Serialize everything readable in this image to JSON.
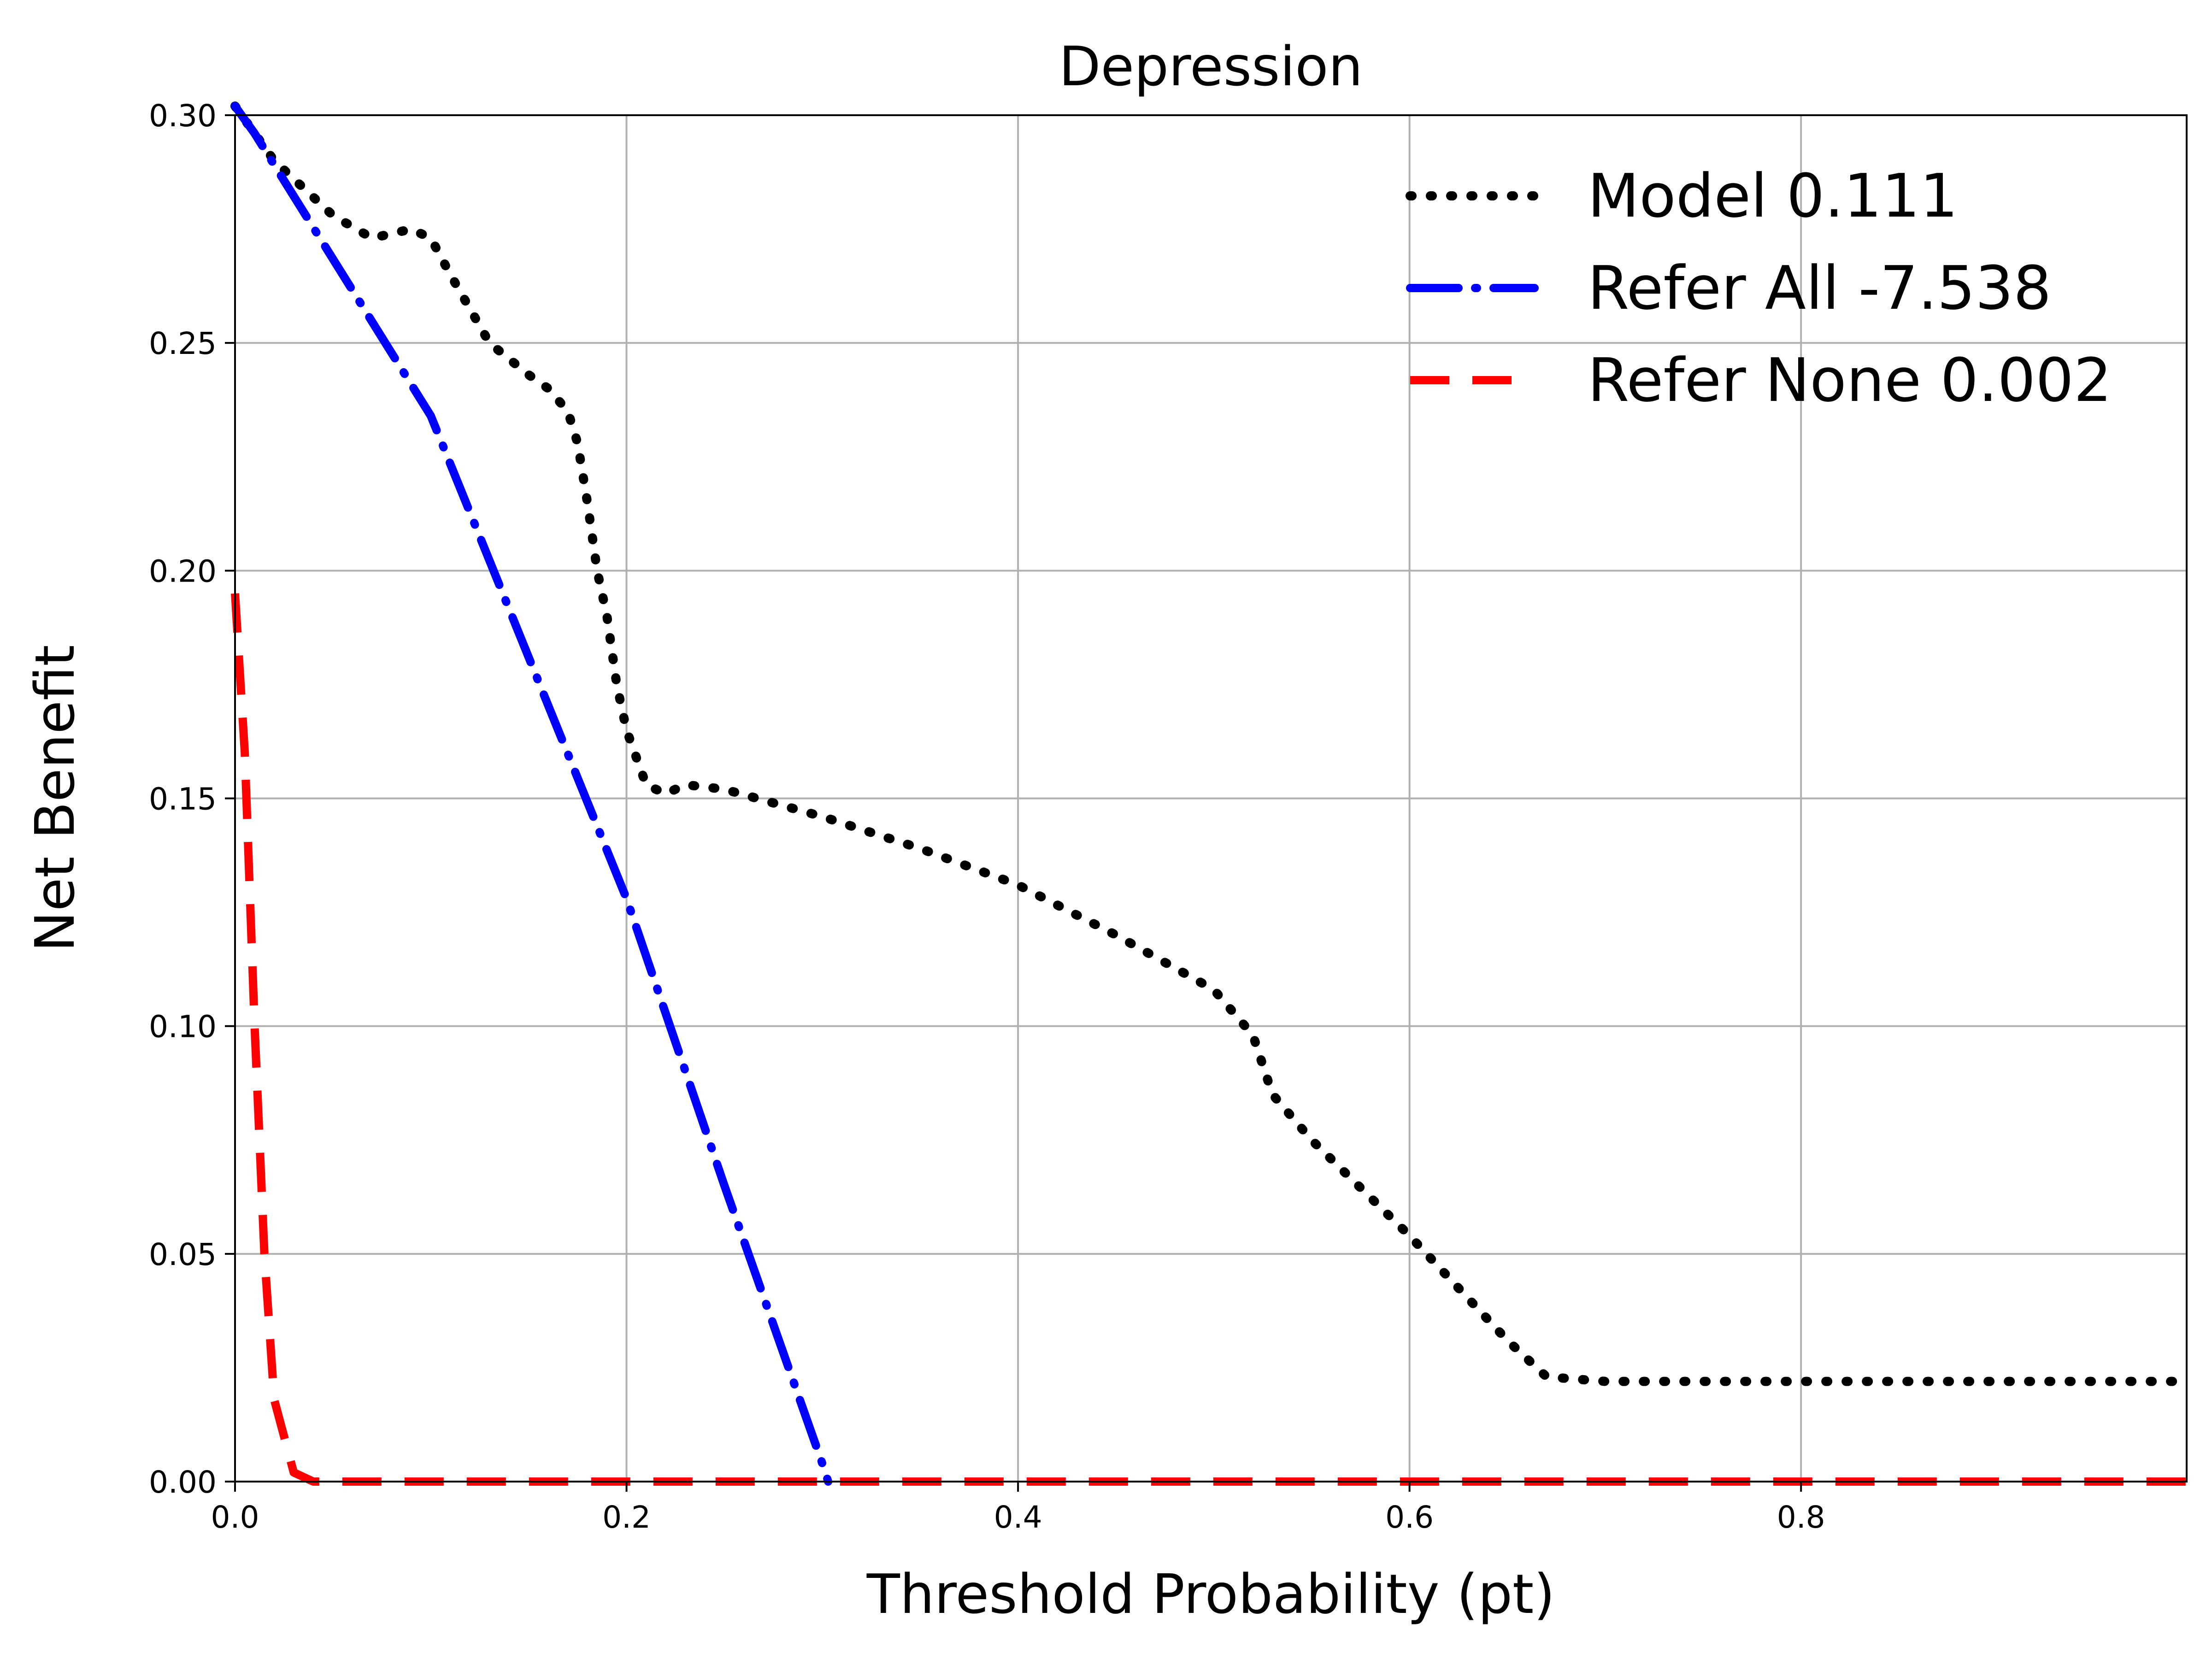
{
  "chart_data": {
    "type": "line",
    "title": "Depression",
    "xlabel": "Threshold Probability (pt)",
    "ylabel": "Net Benefit",
    "xlim": [
      0,
      0.997
    ],
    "ylim": [
      0,
      0.3
    ],
    "xticks": [
      0.0,
      0.2,
      0.4,
      0.6,
      0.8
    ],
    "xtick_labels": [
      "0.0",
      "0.2",
      "0.4",
      "0.6",
      "0.8"
    ],
    "yticks": [
      0.0,
      0.05,
      0.1,
      0.15,
      0.2,
      0.25,
      0.3
    ],
    "ytick_labels": [
      "0.00",
      "0.05",
      "0.10",
      "0.15",
      "0.20",
      "0.25",
      "0.30"
    ],
    "grid": true,
    "legend_position": "top-right",
    "series": [
      {
        "name": "Model 0.111",
        "color": "#000000",
        "style": "dotted",
        "x": [
          0.0,
          0.02,
          0.05,
          0.07,
          0.09,
          0.1,
          0.11,
          0.13,
          0.15,
          0.16,
          0.17,
          0.175,
          0.18,
          0.185,
          0.19,
          0.195,
          0.2,
          0.21,
          0.22,
          0.23,
          0.25,
          0.3,
          0.35,
          0.4,
          0.45,
          0.5,
          0.52,
          0.53,
          0.55,
          0.6,
          0.65,
          0.67,
          0.7,
          0.8,
          0.9,
          0.997
        ],
        "y": [
          0.302,
          0.29,
          0.278,
          0.273,
          0.275,
          0.273,
          0.265,
          0.25,
          0.243,
          0.24,
          0.235,
          0.228,
          0.215,
          0.2,
          0.19,
          0.175,
          0.165,
          0.153,
          0.151,
          0.153,
          0.152,
          0.146,
          0.139,
          0.131,
          0.12,
          0.108,
          0.098,
          0.085,
          0.075,
          0.054,
          0.031,
          0.023,
          0.022,
          0.022,
          0.022,
          0.022
        ]
      },
      {
        "name": "Refer All -7.538",
        "color": "#0000ff",
        "style": "dashdot",
        "x": [
          0.0,
          0.01,
          0.1,
          0.2,
          0.25,
          0.3,
          0.303
        ],
        "y": [
          0.302,
          0.296,
          0.234,
          0.128,
          0.065,
          0.004,
          0.0
        ]
      },
      {
        "name": "Refer None 0.002",
        "color": "#ff0000",
        "style": "dashed",
        "x": [
          0.0,
          0.005,
          0.01,
          0.015,
          0.02,
          0.025,
          0.03,
          0.035,
          0.04,
          0.05,
          0.997
        ],
        "y": [
          0.195,
          0.16,
          0.1,
          0.05,
          0.018,
          0.01,
          0.002,
          0.001,
          0.0,
          0.0,
          0.0
        ]
      }
    ]
  }
}
